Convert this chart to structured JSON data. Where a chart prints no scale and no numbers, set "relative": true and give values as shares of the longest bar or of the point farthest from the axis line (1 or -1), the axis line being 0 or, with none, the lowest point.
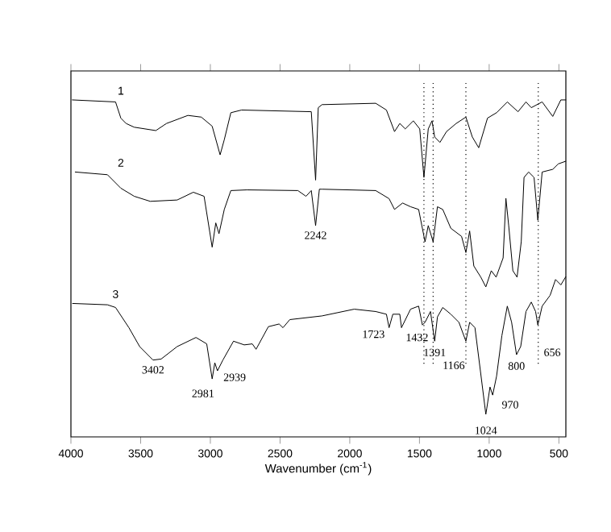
{
  "chart_data": {
    "type": "line",
    "relative": true,
    "xlabel": "Wavenumber (cm$^{-1}$)",
    "xlim": [
      4000,
      450
    ],
    "xticks": [
      4000,
      3500,
      3000,
      2500,
      2000,
      1500,
      1000,
      500
    ],
    "series": [
      {
        "name": "1",
        "color": "#000000",
        "x": [
          3990,
          3680,
          3642,
          3604,
          3546,
          3391,
          3315,
          3161,
          3065,
          2987,
          2930,
          2900,
          2853,
          2776,
          2276,
          2245,
          2226,
          2199,
          1814,
          1737,
          1679,
          1641,
          1602,
          1544,
          1498,
          1468,
          1437,
          1410,
          1391,
          1353,
          1306,
          1237,
          1167,
          1121,
          1075,
          1012,
          947,
          870,
          793,
          736,
          698,
          620,
          544,
          486,
          451
        ],
        "values": [
          1.0,
          0.994,
          0.946,
          0.93,
          0.919,
          0.909,
          0.93,
          0.954,
          0.949,
          0.922,
          0.837,
          0.882,
          0.962,
          0.97,
          0.965,
          0.762,
          0.977,
          0.986,
          0.99,
          0.97,
          0.906,
          0.93,
          0.914,
          0.938,
          0.914,
          0.77,
          0.914,
          0.938,
          0.89,
          0.874,
          0.906,
          0.93,
          0.949,
          0.89,
          0.858,
          0.946,
          0.962,
          0.994,
          0.965,
          0.994,
          0.977,
          0.994,
          0.951,
          1.0,
          1.0
        ]
      },
      {
        "name": "2",
        "color": "#000000",
        "x": [
          3969,
          3738,
          3642,
          3546,
          3431,
          3238,
          3122,
          3045,
          2987,
          2961,
          2938,
          2900,
          2853,
          2738,
          2372,
          2314,
          2276,
          2245,
          2218,
          2199,
          1814,
          1718,
          1679,
          1621,
          1564,
          1506,
          1460,
          1437,
          1402,
          1371,
          1333,
          1275,
          1198,
          1167,
          1140,
          1110,
          1060,
          1024,
          985,
          950,
          900,
          880,
          860,
          830,
          800,
          770,
          750,
          717,
          678,
          651,
          620,
          544,
          505,
          451
        ],
        "values": [
          0.786,
          0.778,
          0.738,
          0.714,
          0.699,
          0.703,
          0.726,
          0.714,
          0.563,
          0.635,
          0.603,
          0.675,
          0.731,
          0.733,
          0.731,
          0.714,
          0.731,
          0.627,
          0.735,
          0.735,
          0.731,
          0.707,
          0.675,
          0.694,
          0.683,
          0.675,
          0.579,
          0.627,
          0.579,
          0.683,
          0.675,
          0.619,
          0.595,
          0.547,
          0.611,
          0.507,
          0.474,
          0.445,
          0.493,
          0.474,
          0.531,
          0.708,
          0.627,
          0.493,
          0.474,
          0.579,
          0.77,
          0.786,
          0.77,
          0.643,
          0.786,
          0.794,
          0.81,
          0.818
        ]
      },
      {
        "name": "3",
        "color": "#000000",
        "x": [
          3988,
          3738,
          3680,
          3584,
          3507,
          3411,
          3353,
          3238,
          3103,
          3026,
          2987,
          2968,
          2949,
          2910,
          2834,
          2757,
          2699,
          2672,
          2584,
          2507,
          2479,
          2430,
          2199,
          1968,
          1814,
          1737,
          1718,
          1691,
          1641,
          1629,
          1564,
          1506,
          1479,
          1460,
          1421,
          1391,
          1371,
          1333,
          1275,
          1217,
          1167,
          1140,
          1102,
          1063,
          1024,
          1017,
          994,
          975,
          947,
          909,
          870,
          839,
          804,
          774,
          736,
          698,
          667,
          651,
          620,
          563,
          524,
          486,
          451
        ],
        "values": [
          0.396,
          0.392,
          0.384,
          0.324,
          0.268,
          0.228,
          0.231,
          0.268,
          0.295,
          0.276,
          0.172,
          0.22,
          0.196,
          0.228,
          0.284,
          0.273,
          0.276,
          0.26,
          0.327,
          0.335,
          0.324,
          0.348,
          0.359,
          0.379,
          0.372,
          0.364,
          0.324,
          0.364,
          0.364,
          0.324,
          0.379,
          0.388,
          0.332,
          0.34,
          0.372,
          0.284,
          0.356,
          0.384,
          0.364,
          0.34,
          0.284,
          0.34,
          0.324,
          0.196,
          0.067,
          0.085,
          0.148,
          0.124,
          0.18,
          0.3,
          0.388,
          0.34,
          0.244,
          0.268,
          0.372,
          0.4,
          0.372,
          0.332,
          0.388,
          0.42,
          0.467,
          0.451,
          0.475
        ]
      }
    ],
    "ref_lines": [
      {
        "axis": "x",
        "value": 1468,
        "line_style": "dotted"
      },
      {
        "axis": "x",
        "value": 1402,
        "line_style": "dotted"
      },
      {
        "axis": "x",
        "value": 1167,
        "line_style": "dotted"
      },
      {
        "axis": "x",
        "value": 648,
        "line_style": "dotted"
      }
    ],
    "annotations": [
      {
        "text": "2242",
        "x": 2245,
        "y": 0.627
      },
      {
        "text": "3402",
        "x": 3411,
        "y": 0.228
      },
      {
        "text": "2981",
        "x": 2987,
        "y": 0.172
      },
      {
        "text": "2939",
        "x": 2949,
        "y": 0.196
      },
      {
        "text": "1723",
        "x": 1718,
        "y": 0.324
      },
      {
        "text": "1432",
        "x": 1629,
        "y": 0.324
      },
      {
        "text": "1391",
        "x": 1391,
        "y": 0.284
      },
      {
        "text": "1166",
        "x": 1167,
        "y": 0.284
      },
      {
        "text": "1024",
        "x": 1024,
        "y": 0.067
      },
      {
        "text": "970",
        "x": 975,
        "y": 0.124
      },
      {
        "text": "800",
        "x": 804,
        "y": 0.244
      },
      {
        "text": "656",
        "x": 651,
        "y": 0.332
      }
    ]
  }
}
